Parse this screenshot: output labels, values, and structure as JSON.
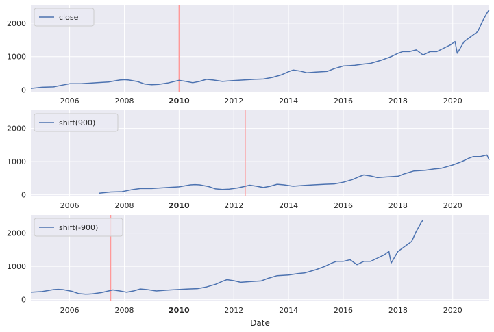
{
  "chart_data": {
    "type": "line",
    "xlabel": "Date",
    "x_range": [
      "2004-08",
      "2021-05"
    ],
    "x_ticks": [
      "2006",
      "2008",
      "2010",
      "2012",
      "2014",
      "2016",
      "2018",
      "2020"
    ],
    "highlight_tick": "2010",
    "highlight_color": "#ff0000",
    "line_color": "#4c72b0",
    "vline_color": "#ff9999",
    "background": "#eaeaf2",
    "grid": true,
    "legend_position": "top-left",
    "panels": [
      {
        "series_name": "close",
        "ylim": [
          -50,
          2550
        ],
        "y_ticks": [
          "0",
          "1000",
          "2000"
        ],
        "vline": "2010-01",
        "points": [
          [
            "2004-08",
            50
          ],
          [
            "2005-01",
            85
          ],
          [
            "2005-06",
            95
          ],
          [
            "2005-10",
            150
          ],
          [
            "2006-01",
            190
          ],
          [
            "2006-06",
            190
          ],
          [
            "2007-01",
            220
          ],
          [
            "2007-06",
            240
          ],
          [
            "2007-11",
            300
          ],
          [
            "2008-01",
            310
          ],
          [
            "2008-03",
            300
          ],
          [
            "2008-07",
            250
          ],
          [
            "2008-10",
            180
          ],
          [
            "2009-01",
            160
          ],
          [
            "2009-04",
            170
          ],
          [
            "2009-08",
            210
          ],
          [
            "2010-01",
            290
          ],
          [
            "2010-04",
            260
          ],
          [
            "2010-07",
            220
          ],
          [
            "2010-10",
            260
          ],
          [
            "2011-01",
            320
          ],
          [
            "2011-04",
            300
          ],
          [
            "2011-08",
            260
          ],
          [
            "2011-12",
            280
          ],
          [
            "2012-05",
            300
          ],
          [
            "2012-10",
            320
          ],
          [
            "2013-02",
            330
          ],
          [
            "2013-06",
            380
          ],
          [
            "2013-10",
            460
          ],
          [
            "2014-01",
            550
          ],
          [
            "2014-03",
            600
          ],
          [
            "2014-06",
            570
          ],
          [
            "2014-09",
            520
          ],
          [
            "2015-01",
            540
          ],
          [
            "2015-06",
            560
          ],
          [
            "2015-09",
            640
          ],
          [
            "2016-01",
            720
          ],
          [
            "2016-06",
            740
          ],
          [
            "2016-10",
            780
          ],
          [
            "2017-01",
            800
          ],
          [
            "2017-06",
            900
          ],
          [
            "2017-10",
            1000
          ],
          [
            "2018-01",
            1100
          ],
          [
            "2018-03",
            1150
          ],
          [
            "2018-06",
            1150
          ],
          [
            "2018-09",
            1200
          ],
          [
            "2018-12",
            1050
          ],
          [
            "2019-03",
            1150
          ],
          [
            "2019-06",
            1150
          ],
          [
            "2019-09",
            1250
          ],
          [
            "2019-12",
            1350
          ],
          [
            "2020-02",
            1450
          ],
          [
            "2020-03",
            1100
          ],
          [
            "2020-06",
            1450
          ],
          [
            "2020-09",
            1600
          ],
          [
            "2020-12",
            1750
          ],
          [
            "2021-02",
            2050
          ],
          [
            "2021-04",
            2300
          ],
          [
            "2021-05",
            2400
          ]
        ]
      },
      {
        "series_name": "shift(900)",
        "ylim": [
          -50,
          2550
        ],
        "y_ticks": [
          "0",
          "1000",
          "2000"
        ],
        "vline": "2012-06",
        "points": [
          [
            "2007-02",
            50
          ],
          [
            "2007-07",
            85
          ],
          [
            "2007-12",
            95
          ],
          [
            "2008-04",
            150
          ],
          [
            "2008-08",
            190
          ],
          [
            "2009-01",
            190
          ],
          [
            "2009-08",
            220
          ],
          [
            "2010-01",
            240
          ],
          [
            "2010-06",
            300
          ],
          [
            "2010-08",
            310
          ],
          [
            "2010-10",
            300
          ],
          [
            "2011-02",
            250
          ],
          [
            "2011-05",
            180
          ],
          [
            "2011-08",
            160
          ],
          [
            "2011-11",
            170
          ],
          [
            "2012-03",
            210
          ],
          [
            "2012-08",
            290
          ],
          [
            "2012-11",
            260
          ],
          [
            "2013-02",
            220
          ],
          [
            "2013-05",
            260
          ],
          [
            "2013-08",
            320
          ],
          [
            "2013-11",
            300
          ],
          [
            "2014-03",
            260
          ],
          [
            "2014-07",
            280
          ],
          [
            "2014-12",
            300
          ],
          [
            "2015-05",
            320
          ],
          [
            "2015-09",
            330
          ],
          [
            "2016-01",
            380
          ],
          [
            "2016-05",
            460
          ],
          [
            "2016-08",
            550
          ],
          [
            "2016-10",
            600
          ],
          [
            "2017-01",
            570
          ],
          [
            "2017-04",
            520
          ],
          [
            "2017-08",
            540
          ],
          [
            "2018-01",
            560
          ],
          [
            "2018-04",
            640
          ],
          [
            "2018-08",
            720
          ],
          [
            "2019-01",
            740
          ],
          [
            "2019-05",
            780
          ],
          [
            "2019-08",
            800
          ],
          [
            "2020-01",
            900
          ],
          [
            "2020-05",
            1000
          ],
          [
            "2020-08",
            1100
          ],
          [
            "2020-10",
            1150
          ],
          [
            "2021-01",
            1150
          ],
          [
            "2021-04",
            1200
          ],
          [
            "2021-05",
            1050
          ]
        ]
      },
      {
        "series_name": "shift(-900)",
        "ylim": [
          -50,
          2550
        ],
        "y_ticks": [
          "0",
          "1000",
          "2000"
        ],
        "vline": "2007-07",
        "points": [
          [
            "2004-08",
            220
          ],
          [
            "2005-01",
            240
          ],
          [
            "2005-06",
            300
          ],
          [
            "2005-08",
            310
          ],
          [
            "2005-10",
            300
          ],
          [
            "2006-02",
            250
          ],
          [
            "2006-05",
            180
          ],
          [
            "2006-08",
            160
          ],
          [
            "2006-11",
            170
          ],
          [
            "2007-03",
            210
          ],
          [
            "2007-08",
            290
          ],
          [
            "2007-11",
            260
          ],
          [
            "2008-02",
            220
          ],
          [
            "2008-05",
            260
          ],
          [
            "2008-08",
            320
          ],
          [
            "2008-11",
            300
          ],
          [
            "2009-03",
            260
          ],
          [
            "2009-07",
            280
          ],
          [
            "2009-12",
            300
          ],
          [
            "2010-05",
            320
          ],
          [
            "2010-09",
            330
          ],
          [
            "2011-01",
            380
          ],
          [
            "2011-05",
            460
          ],
          [
            "2011-08",
            550
          ],
          [
            "2011-10",
            600
          ],
          [
            "2012-01",
            570
          ],
          [
            "2012-04",
            520
          ],
          [
            "2012-08",
            540
          ],
          [
            "2013-01",
            560
          ],
          [
            "2013-04",
            640
          ],
          [
            "2013-08",
            720
          ],
          [
            "2014-01",
            740
          ],
          [
            "2014-05",
            780
          ],
          [
            "2014-08",
            800
          ],
          [
            "2015-01",
            900
          ],
          [
            "2015-05",
            1000
          ],
          [
            "2015-08",
            1100
          ],
          [
            "2015-10",
            1150
          ],
          [
            "2016-01",
            1150
          ],
          [
            "2016-04",
            1200
          ],
          [
            "2016-07",
            1050
          ],
          [
            "2016-10",
            1150
          ],
          [
            "2017-01",
            1150
          ],
          [
            "2017-04",
            1250
          ],
          [
            "2017-07",
            1350
          ],
          [
            "2017-09",
            1450
          ],
          [
            "2017-10",
            1100
          ],
          [
            "2018-01",
            1450
          ],
          [
            "2018-04",
            1600
          ],
          [
            "2018-07",
            1750
          ],
          [
            "2018-09",
            2050
          ],
          [
            "2018-11",
            2300
          ],
          [
            "2018-12",
            2400
          ]
        ]
      }
    ]
  }
}
